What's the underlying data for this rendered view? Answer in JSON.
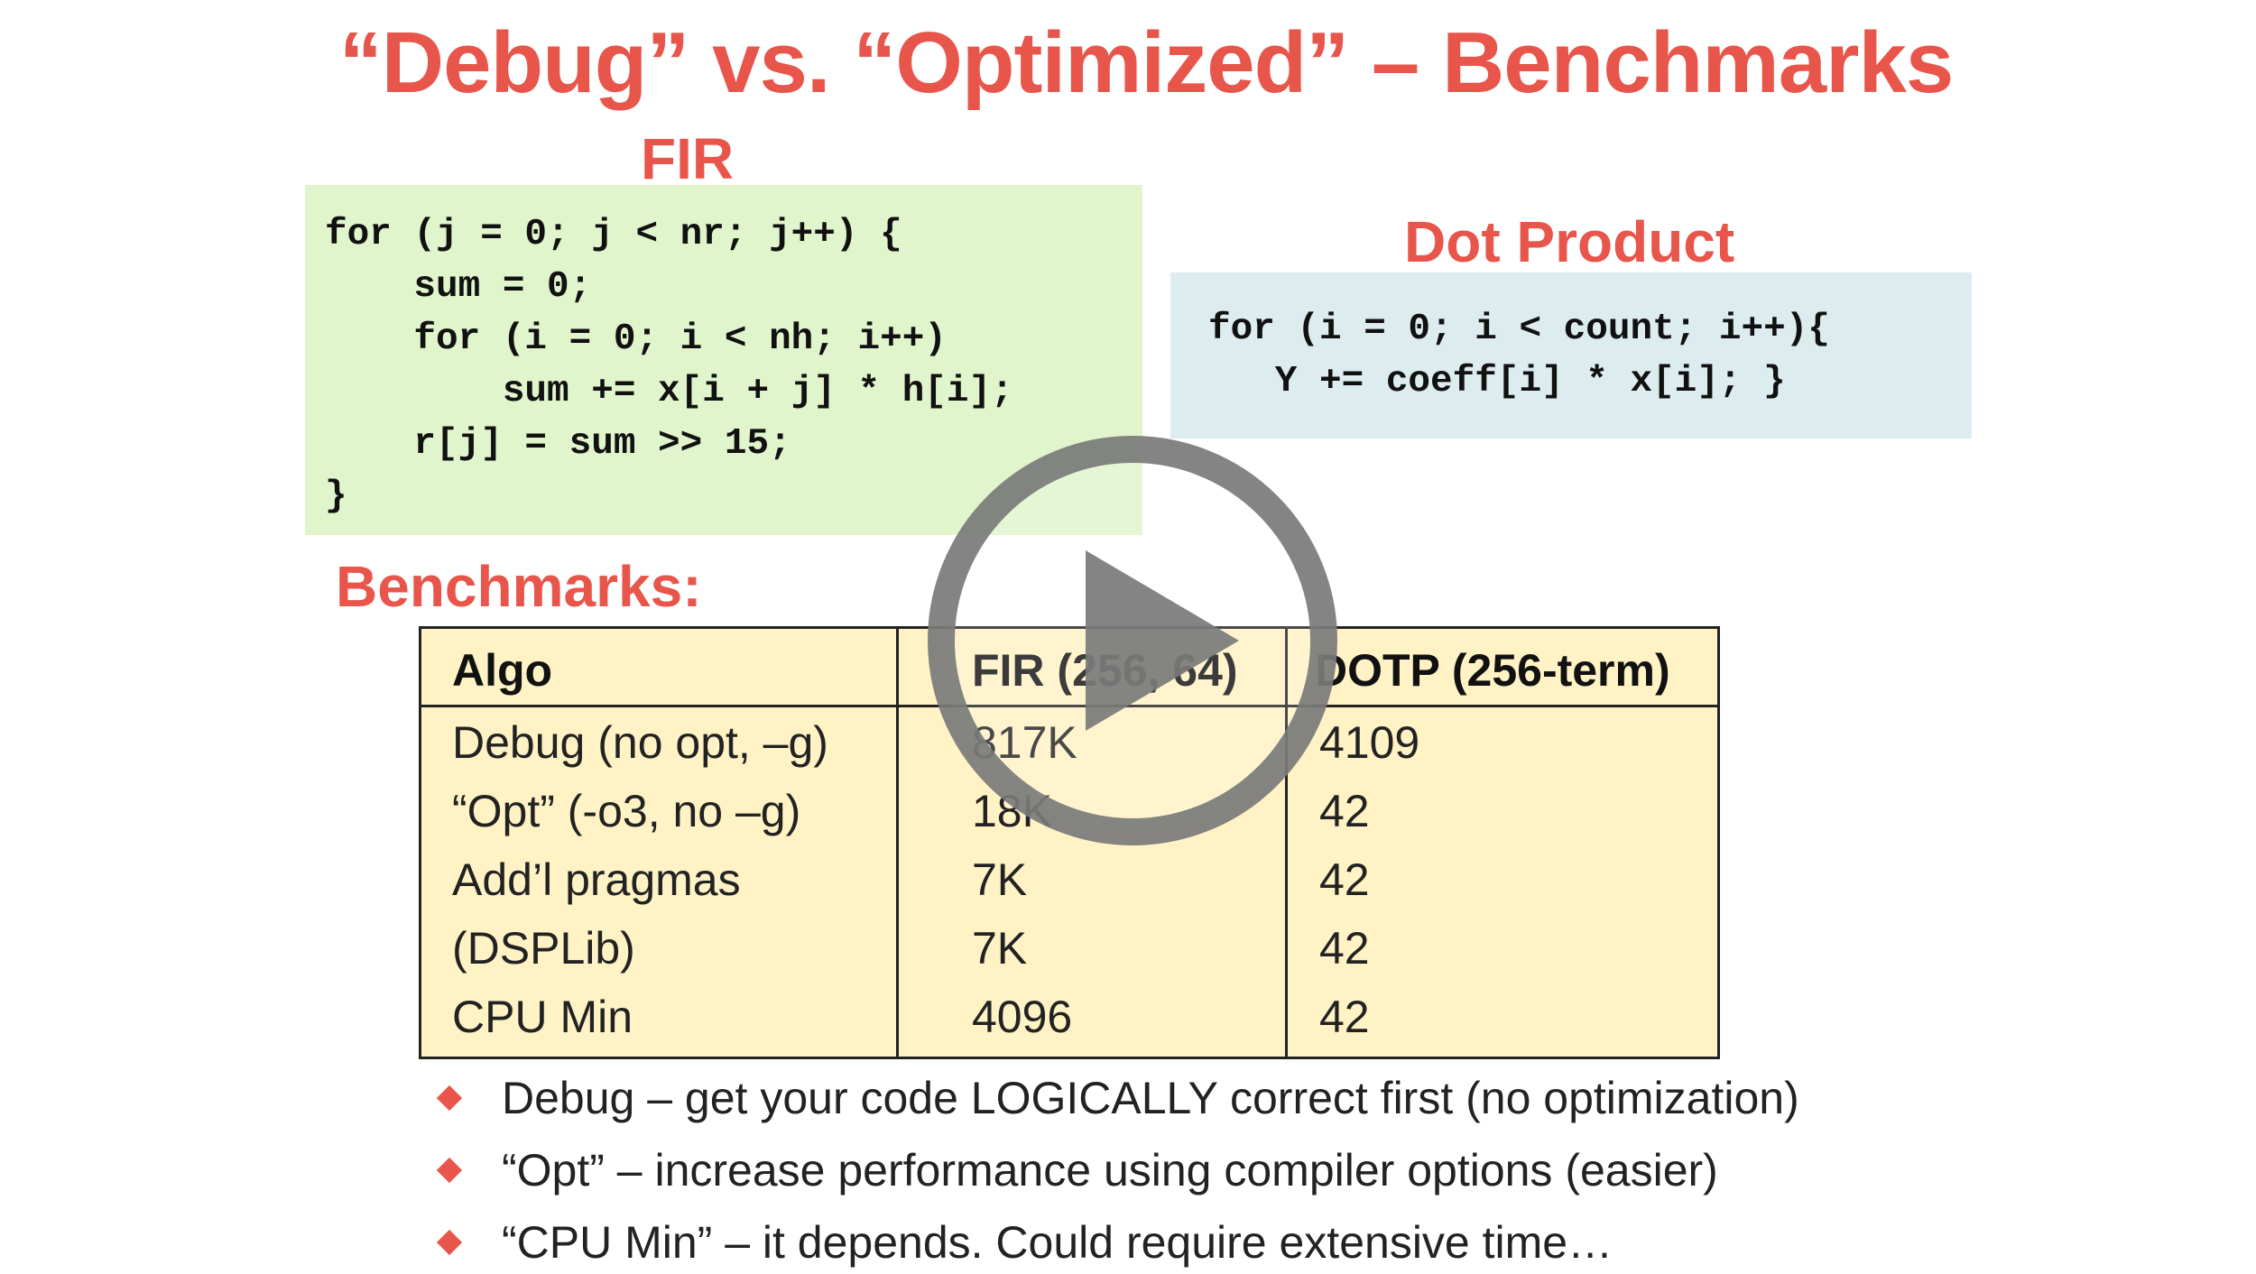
{
  "slide": {
    "title": "“Debug” vs. “Optimized” – Benchmarks",
    "fir_heading": "FIR",
    "dot_heading": "Dot Product",
    "benchmarks_heading": "Benchmarks:"
  },
  "fir_code": {
    "lines": [
      "for (j = 0; j < nr; j++) {",
      "    sum = 0;",
      "    for (i = 0; i < nh; i++)",
      "        sum += x[i + j] * h[i];",
      "    r[j] = sum >> 15;",
      "}"
    ]
  },
  "dot_code": {
    "lines": [
      "for (i = 0; i < count; i++){",
      "   Y += coeff[i] * x[i]; }"
    ]
  },
  "table": {
    "headers": [
      "Algo",
      "FIR (256, 64)",
      "DOTP (256-term)"
    ],
    "rows": [
      [
        "Debug (no opt, –g)",
        "817K",
        "4109"
      ],
      [
        "“Opt” (-o3, no –g)",
        "18K",
        "42"
      ],
      [
        "Add’l pragmas",
        "7K",
        "42"
      ],
      [
        "(DSPLib)",
        "7K",
        "42"
      ],
      [
        "CPU Min",
        "4096",
        "42"
      ]
    ]
  },
  "bullets": [
    "Debug – get your code LOGICALLY correct first (no optimization)",
    "“Opt” – increase performance using compiler options (easier)",
    "“CPU Min” – it depends. Could require extensive time…"
  ],
  "colors": {
    "accent": "#e8554a",
    "fir_code_bg": "#e0f5cc",
    "dot_code_bg": "#dcecef",
    "table_bg": "#fff2c4",
    "play_overlay": "#7a7a7a"
  },
  "overlay": {
    "icon": "play-icon"
  }
}
